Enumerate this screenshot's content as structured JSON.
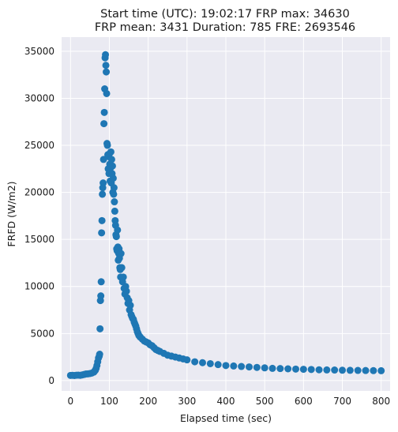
{
  "chart_data": {
    "type": "scatter",
    "title_line1": "Start time (UTC): 19:02:17 FRP max: 34630",
    "title_line2": "FRP mean: 3431 Duration: 785 FRE: 2693546",
    "xlabel": "Elapsed time (sec)",
    "ylabel": "FRFD (W/m2)",
    "xlim": [
      -23,
      823
    ],
    "ylim": [
      -1100,
      36500
    ],
    "xticks": [
      0,
      100,
      200,
      300,
      400,
      500,
      600,
      700,
      800
    ],
    "yticks": [
      0,
      5000,
      10000,
      15000,
      20000,
      25000,
      30000,
      35000
    ],
    "grid": true,
    "background": "#eaeaf2",
    "point_color": "#1f77b4",
    "series": [
      {
        "x": [
          0,
          5,
          10,
          15,
          20,
          25,
          30,
          35,
          40,
          45,
          50,
          55,
          60,
          62,
          64,
          66,
          68,
          70,
          72,
          74,
          75,
          76,
          77,
          78,
          79,
          80,
          81,
          82,
          83,
          84,
          85,
          86,
          87,
          88,
          89,
          90,
          91,
          92,
          93,
          94,
          95,
          96,
          97,
          98,
          99,
          100,
          101,
          102,
          103,
          104,
          105,
          106,
          107,
          108,
          109,
          110,
          111,
          112,
          113,
          114,
          115,
          116,
          117,
          118,
          119,
          120,
          121,
          122,
          123,
          124,
          125,
          126,
          127,
          128,
          129,
          130,
          132,
          134,
          136,
          138,
          140,
          142,
          144,
          146,
          148,
          150,
          152,
          154,
          156,
          158,
          160,
          162,
          164,
          166,
          168,
          170,
          172,
          174,
          176,
          178,
          180,
          185,
          190,
          195,
          200,
          205,
          210,
          215,
          220,
          225,
          230,
          240,
          250,
          260,
          270,
          280,
          290,
          300,
          320,
          340,
          360,
          380,
          400,
          420,
          440,
          460,
          480,
          500,
          520,
          540,
          560,
          580,
          600,
          620,
          640,
          660,
          680,
          700,
          720,
          740,
          760,
          780,
          800
        ],
        "y": [
          550,
          560,
          540,
          570,
          580,
          560,
          600,
          650,
          700,
          720,
          750,
          800,
          900,
          1000,
          1100,
          1300,
          1600,
          2000,
          2400,
          2600,
          2800,
          5500,
          8500,
          9000,
          10500,
          15700,
          17000,
          19800,
          20500,
          21000,
          23500,
          27300,
          28500,
          31000,
          34300,
          34630,
          33500,
          32800,
          30500,
          25200,
          25000,
          24000,
          22500,
          23800,
          22000,
          24100,
          23000,
          21200,
          22600,
          24300,
          21000,
          23500,
          22000,
          22800,
          20000,
          21500,
          19800,
          20500,
          19000,
          18000,
          17000,
          16500,
          15500,
          15300,
          14000,
          13800,
          16000,
          14200,
          12800,
          13500,
          14000,
          13000,
          12000,
          11800,
          11000,
          13500,
          12000,
          10500,
          11000,
          9800,
          9200,
          10000,
          9500,
          8800,
          8200,
          8500,
          7500,
          8000,
          7000,
          6800,
          6600,
          6500,
          6200,
          6000,
          5800,
          5500,
          5200,
          5000,
          4800,
          4700,
          4600,
          4400,
          4200,
          4100,
          4000,
          3800,
          3700,
          3500,
          3300,
          3200,
          3100,
          2900,
          2700,
          2600,
          2500,
          2400,
          2300,
          2200,
          2000,
          1900,
          1800,
          1700,
          1600,
          1550,
          1500,
          1450,
          1400,
          1350,
          1300,
          1280,
          1250,
          1220,
          1200,
          1180,
          1150,
          1130,
          1120,
          1100,
          1090,
          1080,
          1070,
          1060,
          1050
        ]
      }
    ]
  }
}
